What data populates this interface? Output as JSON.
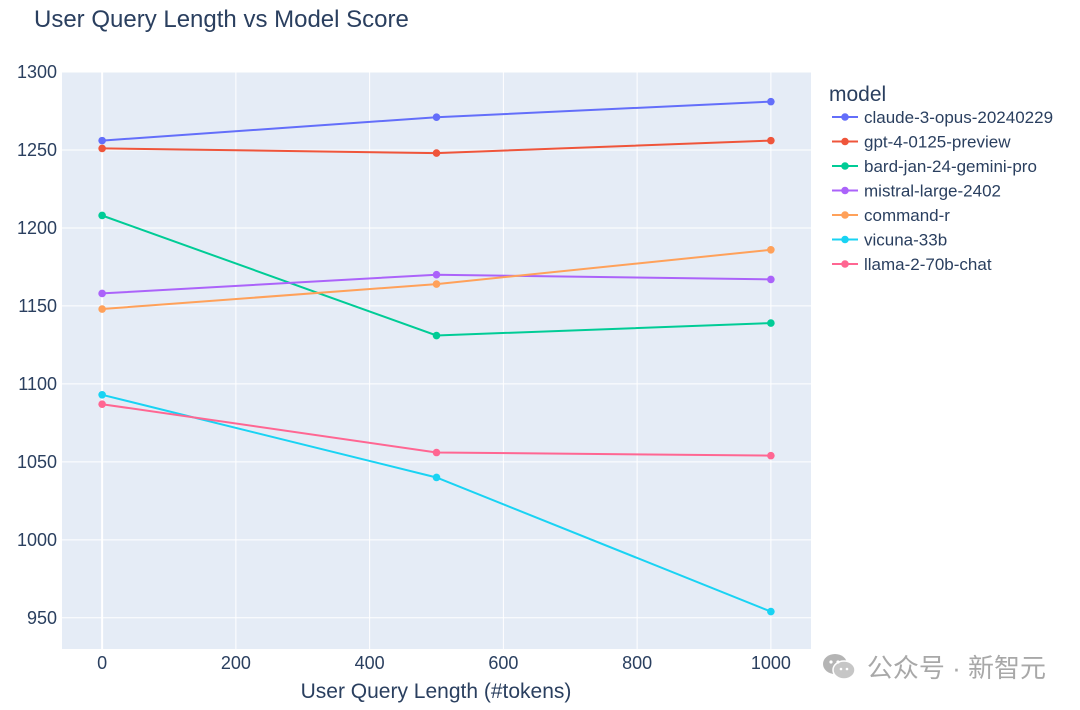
{
  "chart_data": {
    "type": "line",
    "title": "User Query Length vs Model Score",
    "xlabel": "User Query Length (#tokens)",
    "ylabel": "",
    "x": [
      0,
      500,
      1000
    ],
    "xlim": [
      -60,
      1060
    ],
    "ylim": [
      930,
      1300
    ],
    "xticks": [
      0,
      200,
      400,
      600,
      800,
      1000
    ],
    "yticks": [
      950,
      1000,
      1050,
      1100,
      1150,
      1200,
      1250,
      1300
    ],
    "legend_title": "model",
    "legend_position": "right",
    "grid": true,
    "series": [
      {
        "name": "claude-3-opus-20240229",
        "color": "#636efa",
        "values": [
          1256,
          1271,
          1281
        ]
      },
      {
        "name": "gpt-4-0125-preview",
        "color": "#ef553b",
        "values": [
          1251,
          1248,
          1256
        ]
      },
      {
        "name": "bard-jan-24-gemini-pro",
        "color": "#00cc96",
        "values": [
          1208,
          1131,
          1139
        ]
      },
      {
        "name": "mistral-large-2402",
        "color": "#ab63fa",
        "values": [
          1158,
          1170,
          1167
        ]
      },
      {
        "name": "command-r",
        "color": "#ffa15a",
        "values": [
          1148,
          1164,
          1186
        ]
      },
      {
        "name": "vicuna-33b",
        "color": "#19d3f3",
        "values": [
          1093,
          1040,
          954
        ]
      },
      {
        "name": "llama-2-70b-chat",
        "color": "#ff6692",
        "values": [
          1087,
          1056,
          1054
        ]
      }
    ]
  },
  "watermark": {
    "text": "公众号 · 新智元",
    "icon": "wechat-icon"
  }
}
